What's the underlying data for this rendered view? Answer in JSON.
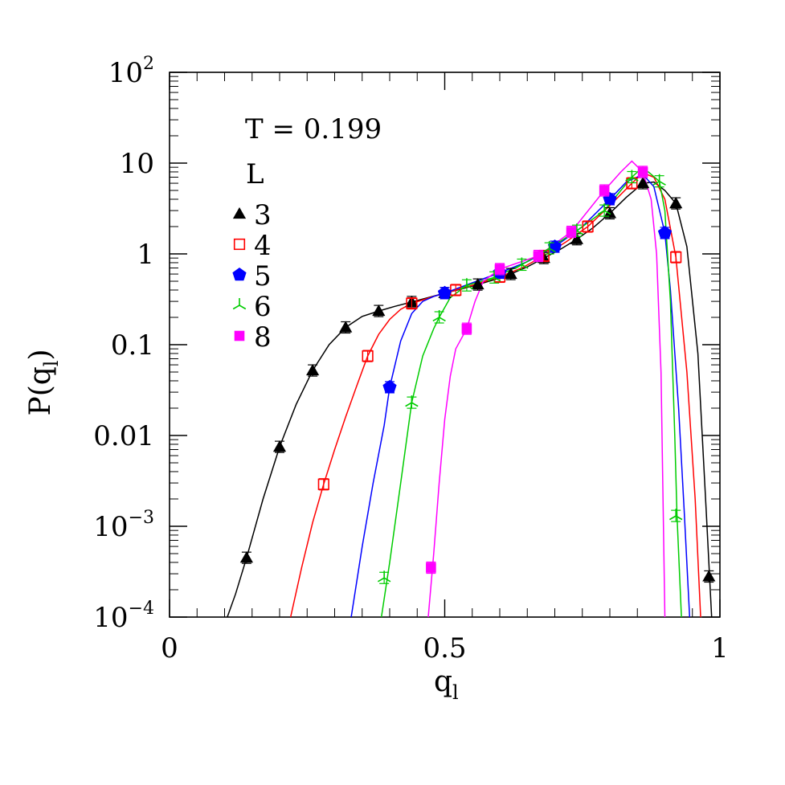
{
  "chart_data": {
    "type": "scatter",
    "xlabel": "q",
    "xlabel_sub": "l",
    "ylabel": "P(q",
    "ylabel_sub": "l",
    "ylabel_close": ")",
    "xlim": [
      0,
      1
    ],
    "ylim": [
      0.0001,
      100
    ],
    "yscale": "log",
    "grid": false,
    "x_ticks": [
      {
        "value": 0,
        "label": "0"
      },
      {
        "value": 0.5,
        "label": "0.5"
      },
      {
        "value": 1,
        "label": "1"
      }
    ],
    "y_ticks": [
      {
        "value": 100,
        "base": "10",
        "exp": "2"
      },
      {
        "value": 10,
        "base": "10",
        "exp": ""
      },
      {
        "value": 1,
        "base": "1",
        "exp": ""
      },
      {
        "value": 0.1,
        "base": "0.1",
        "exp": ""
      },
      {
        "value": 0.01,
        "base": "0.01",
        "exp": ""
      },
      {
        "value": 0.001,
        "base": "10",
        "exp": "−3"
      },
      {
        "value": 0.0001,
        "base": "10",
        "exp": "−4"
      }
    ],
    "annotation": "T  =  0.199",
    "legend_title": "L",
    "legend_position": "top-left",
    "series": [
      {
        "name": "3",
        "color": "#000000",
        "marker": "triangle",
        "points": [
          [
            0.14,
            0.00045
          ],
          [
            0.2,
            0.0075
          ],
          [
            0.26,
            0.052
          ],
          [
            0.32,
            0.155
          ],
          [
            0.38,
            0.235
          ],
          [
            0.44,
            0.295
          ],
          [
            0.5,
            0.37
          ],
          [
            0.56,
            0.46
          ],
          [
            0.62,
            0.6
          ],
          [
            0.68,
            0.9
          ],
          [
            0.74,
            1.45
          ],
          [
            0.8,
            2.8
          ],
          [
            0.86,
            6.0
          ],
          [
            0.92,
            3.6
          ],
          [
            0.98,
            0.00028
          ]
        ],
        "curve": [
          [
            0.105,
            0.0001
          ],
          [
            0.12,
            0.00018
          ],
          [
            0.14,
            0.00045
          ],
          [
            0.17,
            0.002
          ],
          [
            0.2,
            0.0075
          ],
          [
            0.23,
            0.022
          ],
          [
            0.26,
            0.052
          ],
          [
            0.29,
            0.1
          ],
          [
            0.32,
            0.155
          ],
          [
            0.35,
            0.205
          ],
          [
            0.38,
            0.235
          ],
          [
            0.41,
            0.265
          ],
          [
            0.44,
            0.295
          ],
          [
            0.47,
            0.33
          ],
          [
            0.5,
            0.37
          ],
          [
            0.53,
            0.41
          ],
          [
            0.56,
            0.46
          ],
          [
            0.59,
            0.52
          ],
          [
            0.62,
            0.6
          ],
          [
            0.65,
            0.72
          ],
          [
            0.68,
            0.9
          ],
          [
            0.71,
            1.12
          ],
          [
            0.74,
            1.45
          ],
          [
            0.77,
            1.95
          ],
          [
            0.8,
            2.8
          ],
          [
            0.83,
            4.2
          ],
          [
            0.86,
            6.0
          ],
          [
            0.88,
            6.2
          ],
          [
            0.9,
            5.0
          ],
          [
            0.92,
            3.6
          ],
          [
            0.94,
            1.2
          ],
          [
            0.96,
            0.08
          ],
          [
            0.975,
            0.0015
          ],
          [
            0.985,
            0.0001
          ]
        ]
      },
      {
        "name": "4",
        "color": "#ff0000",
        "marker": "square-open",
        "points": [
          [
            0.28,
            0.0029
          ],
          [
            0.36,
            0.075
          ],
          [
            0.44,
            0.285
          ],
          [
            0.52,
            0.4
          ],
          [
            0.6,
            0.56
          ],
          [
            0.68,
            0.95
          ],
          [
            0.76,
            2.0
          ],
          [
            0.84,
            6.0
          ],
          [
            0.92,
            0.92
          ]
        ],
        "curve": [
          [
            0.22,
            0.0001
          ],
          [
            0.24,
            0.00035
          ],
          [
            0.26,
            0.0011
          ],
          [
            0.28,
            0.0029
          ],
          [
            0.3,
            0.007
          ],
          [
            0.32,
            0.016
          ],
          [
            0.34,
            0.035
          ],
          [
            0.36,
            0.075
          ],
          [
            0.38,
            0.13
          ],
          [
            0.4,
            0.19
          ],
          [
            0.42,
            0.245
          ],
          [
            0.44,
            0.285
          ],
          [
            0.48,
            0.34
          ],
          [
            0.52,
            0.4
          ],
          [
            0.56,
            0.47
          ],
          [
            0.6,
            0.56
          ],
          [
            0.64,
            0.7
          ],
          [
            0.68,
            0.95
          ],
          [
            0.72,
            1.35
          ],
          [
            0.76,
            2.0
          ],
          [
            0.8,
            3.4
          ],
          [
            0.84,
            6.0
          ],
          [
            0.86,
            7.8
          ],
          [
            0.88,
            7.0
          ],
          [
            0.9,
            4.0
          ],
          [
            0.92,
            0.92
          ],
          [
            0.94,
            0.05
          ],
          [
            0.955,
            0.002
          ],
          [
            0.965,
            0.0001
          ]
        ]
      },
      {
        "name": "5",
        "color": "#0000ff",
        "marker": "pentagon",
        "points": [
          [
            0.4,
            0.034
          ],
          [
            0.5,
            0.37
          ],
          [
            0.6,
            0.62
          ],
          [
            0.7,
            1.2
          ],
          [
            0.8,
            4.0
          ],
          [
            0.9,
            1.7
          ]
        ],
        "curve": [
          [
            0.33,
            0.0001
          ],
          [
            0.35,
            0.0006
          ],
          [
            0.37,
            0.003
          ],
          [
            0.39,
            0.013
          ],
          [
            0.4,
            0.034
          ],
          [
            0.42,
            0.11
          ],
          [
            0.44,
            0.22
          ],
          [
            0.46,
            0.3
          ],
          [
            0.48,
            0.34
          ],
          [
            0.5,
            0.37
          ],
          [
            0.55,
            0.48
          ],
          [
            0.6,
            0.62
          ],
          [
            0.65,
            0.82
          ],
          [
            0.7,
            1.2
          ],
          [
            0.75,
            2.0
          ],
          [
            0.8,
            4.0
          ],
          [
            0.83,
            6.2
          ],
          [
            0.86,
            7.5
          ],
          [
            0.88,
            5.5
          ],
          [
            0.9,
            1.7
          ],
          [
            0.91,
            0.4
          ],
          [
            0.925,
            0.02
          ],
          [
            0.935,
            0.0015
          ],
          [
            0.945,
            0.0001
          ]
        ]
      },
      {
        "name": "6",
        "color": "#00cc00",
        "marker": "tri-star",
        "points": [
          [
            0.39,
            0.00027
          ],
          [
            0.44,
            0.023
          ],
          [
            0.49,
            0.2
          ],
          [
            0.54,
            0.45
          ],
          [
            0.59,
            0.55
          ],
          [
            0.64,
            0.76
          ],
          [
            0.69,
            1.15
          ],
          [
            0.74,
            1.8
          ],
          [
            0.79,
            3.0
          ],
          [
            0.84,
            7.0
          ],
          [
            0.89,
            6.3
          ],
          [
            0.92,
            0.0013
          ]
        ],
        "curve": [
          [
            0.385,
            0.0001
          ],
          [
            0.4,
            0.0004
          ],
          [
            0.42,
            0.003
          ],
          [
            0.44,
            0.023
          ],
          [
            0.46,
            0.075
          ],
          [
            0.48,
            0.15
          ],
          [
            0.49,
            0.2
          ],
          [
            0.51,
            0.33
          ],
          [
            0.54,
            0.45
          ],
          [
            0.59,
            0.55
          ],
          [
            0.64,
            0.76
          ],
          [
            0.69,
            1.15
          ],
          [
            0.74,
            1.8
          ],
          [
            0.79,
            3.0
          ],
          [
            0.82,
            5.0
          ],
          [
            0.84,
            7.0
          ],
          [
            0.855,
            8.5
          ],
          [
            0.87,
            8.0
          ],
          [
            0.89,
            6.3
          ],
          [
            0.9,
            3.0
          ],
          [
            0.91,
            0.3
          ],
          [
            0.918,
            0.01
          ],
          [
            0.922,
            0.0013
          ],
          [
            0.93,
            0.0001
          ]
        ]
      },
      {
        "name": "8",
        "color": "#ff00ff",
        "marker": "square",
        "points": [
          [
            0.475,
            0.00035
          ],
          [
            0.54,
            0.15
          ],
          [
            0.6,
            0.68
          ],
          [
            0.67,
            0.95
          ],
          [
            0.73,
            1.75
          ],
          [
            0.79,
            5.0
          ],
          [
            0.86,
            8.0
          ]
        ],
        "curve": [
          [
            0.47,
            0.0001
          ],
          [
            0.48,
            0.0005
          ],
          [
            0.49,
            0.003
          ],
          [
            0.5,
            0.015
          ],
          [
            0.51,
            0.045
          ],
          [
            0.52,
            0.09
          ],
          [
            0.54,
            0.15
          ],
          [
            0.555,
            0.3
          ],
          [
            0.57,
            0.5
          ],
          [
            0.6,
            0.68
          ],
          [
            0.67,
            0.95
          ],
          [
            0.73,
            1.75
          ],
          [
            0.79,
            5.0
          ],
          [
            0.82,
            8.0
          ],
          [
            0.84,
            10.5
          ],
          [
            0.86,
            8.0
          ],
          [
            0.875,
            4.0
          ],
          [
            0.885,
            1.0
          ],
          [
            0.893,
            0.05
          ],
          [
            0.9,
            0.0001
          ]
        ]
      }
    ]
  }
}
